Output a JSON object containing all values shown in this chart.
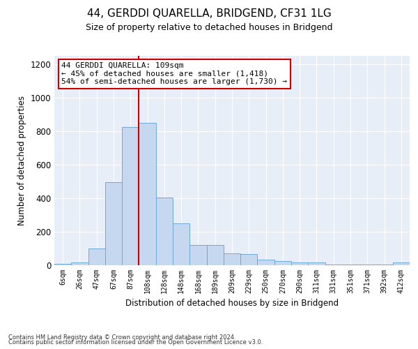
{
  "title": "44, GERDDI QUARELLA, BRIDGEND, CF31 1LG",
  "subtitle": "Size of property relative to detached houses in Bridgend",
  "xlabel": "Distribution of detached houses by size in Bridgend",
  "ylabel": "Number of detached properties",
  "footer_line1": "Contains HM Land Registry data © Crown copyright and database right 2024.",
  "footer_line2": "Contains public sector information licensed under the Open Government Licence v3.0.",
  "annotation_line1": "44 GERDDI QUARELLA: 109sqm",
  "annotation_line2": "← 45% of detached houses are smaller (1,418)",
  "annotation_line3": "54% of semi-detached houses are larger (1,730) →",
  "bar_values": [
    10,
    15,
    100,
    495,
    825,
    850,
    405,
    250,
    120,
    120,
    70,
    68,
    35,
    25,
    15,
    15,
    5,
    5,
    5,
    5,
    15
  ],
  "bar_labels": [
    "6sqm",
    "26sqm",
    "47sqm",
    "67sqm",
    "87sqm",
    "108sqm",
    "128sqm",
    "148sqm",
    "168sqm",
    "189sqm",
    "209sqm",
    "229sqm",
    "250sqm",
    "270sqm",
    "290sqm",
    "311sqm",
    "331sqm",
    "351sqm",
    "371sqm",
    "392sqm",
    "412sqm"
  ],
  "bar_color": "#c5d8f0",
  "bar_edgecolor": "#6fa8d6",
  "vline_color": "#cc0000",
  "ylim": [
    0,
    1250
  ],
  "yticks": [
    0,
    200,
    400,
    600,
    800,
    1000,
    1200
  ],
  "bg_color": "#e8eef8",
  "grid_color": "#ffffff",
  "title_fontsize": 11,
  "subtitle_fontsize": 9,
  "annotation_fontsize": 8,
  "footer_fontsize": 6
}
